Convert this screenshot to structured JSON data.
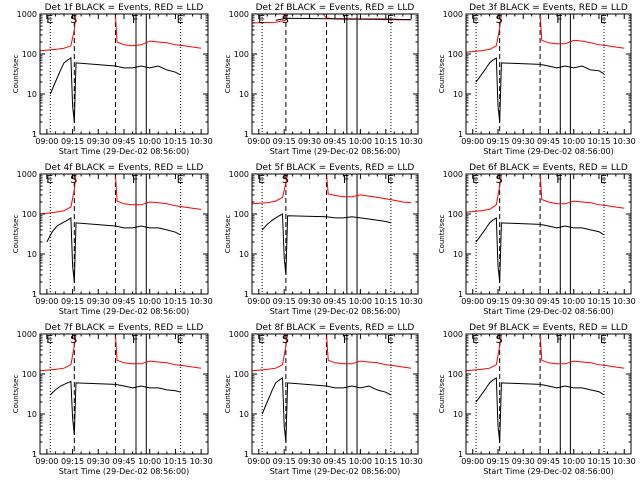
{
  "figure": {
    "x_axis_title": "Start Time (29-Dec-02 08:56:00)",
    "y_axis_title": "Counts/sec"
  },
  "chart_data": {
    "type": "line",
    "layout": "3x3 grid",
    "x_tick_labels": [
      "09:00",
      "09:15",
      "09:30",
      "09:45",
      "10:00",
      "10:15",
      "10:30"
    ],
    "x_tick_minutes_after_0900": [
      0,
      15,
      30,
      45,
      60,
      75,
      90
    ],
    "xlim_minutes_after_0900": [
      -4,
      94
    ],
    "yscale": "log",
    "ylim": [
      1,
      1000
    ],
    "y_tick_labels": [
      "1",
      "10",
      "100",
      "1000"
    ],
    "y_tick_values": [
      1,
      10,
      100,
      1000
    ],
    "series_styles": {
      "events": "#000000",
      "lld": "#ff0000"
    },
    "vertical_markers": [
      {
        "label": "E",
        "minute": 2,
        "style": "dotted"
      },
      {
        "label": "S",
        "minute": 16,
        "style": "dashed"
      },
      {
        "label": "",
        "minute": 40,
        "style": "dashed"
      },
      {
        "label": "F",
        "minute": 52,
        "style": "solid"
      },
      {
        "label": "",
        "minute": 58,
        "style": "solid"
      },
      {
        "label": "E",
        "minute": 78,
        "style": "dotted"
      }
    ],
    "panels": [
      {
        "title": "Det 1f BLACK = Events, RED = LLD",
        "lld": {
          "x": [
            -4,
            5,
            10,
            14,
            16,
            17,
            18,
            40,
            41,
            45,
            50,
            55,
            60,
            65,
            70,
            75,
            80,
            85,
            90
          ],
          "y": [
            120,
            130,
            140,
            160,
            400,
            1000,
            1000,
            1000,
            200,
            170,
            160,
            170,
            210,
            200,
            190,
            170,
            160,
            150,
            140
          ]
        },
        "events": {
          "x": [
            2,
            5,
            8,
            10,
            12,
            14,
            15,
            16,
            17,
            40,
            45,
            50,
            55,
            60,
            65,
            70,
            75,
            78
          ],
          "y": [
            10,
            20,
            40,
            60,
            70,
            80,
            5,
            2,
            60,
            50,
            45,
            45,
            50,
            45,
            50,
            40,
            35,
            30
          ]
        }
      },
      {
        "title": "Det 2f BLACK = Events, RED = LLD",
        "lld": {
          "x": [
            -4,
            10,
            16,
            17,
            18,
            38,
            40,
            45,
            50,
            60,
            70,
            80,
            90
          ],
          "y": [
            600,
            620,
            700,
            1000,
            1000,
            1000,
            800,
            750,
            740,
            740,
            730,
            720,
            720
          ]
        },
        "events": {
          "x": [
            10,
            14,
            16,
            40,
            50,
            60,
            70,
            80,
            90
          ],
          "y": [
            700,
            750,
            780,
            760,
            760,
            750,
            750,
            740,
            720
          ]
        }
      },
      {
        "title": "Det 3f BLACK = Events, RED = LLD",
        "lld": {
          "x": [
            -4,
            5,
            10,
            14,
            16,
            17,
            18,
            40,
            41,
            45,
            50,
            55,
            60,
            65,
            70,
            75,
            80,
            85,
            90
          ],
          "y": [
            110,
            120,
            130,
            160,
            450,
            1000,
            1000,
            1000,
            220,
            190,
            180,
            180,
            220,
            210,
            190,
            170,
            160,
            150,
            140
          ]
        },
        "events": {
          "x": [
            2,
            5,
            8,
            10,
            12,
            14,
            15,
            16,
            17,
            40,
            45,
            50,
            55,
            60,
            65,
            70,
            75,
            78
          ],
          "y": [
            20,
            30,
            45,
            60,
            70,
            80,
            5,
            2,
            60,
            55,
            50,
            45,
            50,
            45,
            50,
            40,
            38,
            32
          ]
        }
      },
      {
        "title": "Det 4f BLACK = Events, RED = LLD",
        "lld": {
          "x": [
            -4,
            5,
            10,
            14,
            16,
            17,
            18,
            40,
            41,
            45,
            50,
            55,
            60,
            65,
            70,
            75,
            80,
            85,
            90
          ],
          "y": [
            100,
            110,
            120,
            150,
            400,
            1000,
            1000,
            1000,
            210,
            180,
            170,
            170,
            200,
            190,
            180,
            160,
            150,
            140,
            130
          ]
        },
        "events": {
          "x": [
            0,
            3,
            6,
            9,
            12,
            14,
            15,
            16,
            17,
            40,
            45,
            50,
            55,
            60,
            65,
            70,
            75,
            78
          ],
          "y": [
            20,
            35,
            50,
            60,
            70,
            80,
            5,
            2,
            60,
            50,
            45,
            45,
            50,
            45,
            45,
            40,
            35,
            30
          ]
        }
      },
      {
        "title": "Det 5f BLACK = Events, RED = LLD",
        "lld": {
          "x": [
            -4,
            5,
            10,
            14,
            16,
            17,
            18,
            40,
            41,
            45,
            50,
            55,
            60,
            65,
            70,
            75,
            80,
            85,
            90
          ],
          "y": [
            180,
            190,
            210,
            260,
            600,
            1000,
            1000,
            1000,
            320,
            290,
            270,
            270,
            300,
            280,
            260,
            240,
            220,
            200,
            190
          ]
        },
        "events": {
          "x": [
            2,
            5,
            8,
            10,
            12,
            14,
            15,
            16,
            17,
            40,
            45,
            50,
            55,
            60,
            65,
            70,
            75,
            78
          ],
          "y": [
            40,
            55,
            70,
            80,
            90,
            100,
            8,
            3,
            90,
            85,
            80,
            80,
            85,
            80,
            75,
            70,
            65,
            60
          ]
        }
      },
      {
        "title": "Det 6f BLACK = Events, RED = LLD",
        "lld": {
          "x": [
            -4,
            5,
            10,
            14,
            16,
            17,
            18,
            40,
            41,
            45,
            50,
            55,
            60,
            65,
            70,
            75,
            80,
            85,
            90
          ],
          "y": [
            110,
            120,
            130,
            170,
            500,
            1000,
            1000,
            1000,
            230,
            200,
            180,
            180,
            210,
            200,
            190,
            170,
            160,
            150,
            140
          ]
        },
        "events": {
          "x": [
            2,
            5,
            8,
            10,
            12,
            14,
            15,
            16,
            17,
            40,
            45,
            50,
            55,
            60,
            65,
            70,
            75,
            78
          ],
          "y": [
            20,
            30,
            45,
            60,
            70,
            80,
            5,
            2,
            60,
            55,
            50,
            45,
            50,
            45,
            45,
            40,
            36,
            30
          ]
        }
      },
      {
        "title": "Det 7f BLACK = Events, RED = LLD",
        "lld": {
          "x": [
            -4,
            5,
            10,
            14,
            16,
            17,
            18,
            40,
            41,
            45,
            50,
            55,
            60,
            65,
            70,
            75,
            80,
            85,
            90
          ],
          "y": [
            120,
            130,
            140,
            170,
            500,
            1000,
            1000,
            1000,
            220,
            190,
            180,
            180,
            210,
            200,
            190,
            170,
            160,
            150,
            140
          ]
        },
        "events": {
          "x": [
            2,
            5,
            8,
            10,
            12,
            14,
            15,
            16,
            17,
            40,
            45,
            50,
            55,
            60,
            65,
            70,
            75,
            78
          ],
          "y": [
            30,
            40,
            50,
            55,
            60,
            65,
            8,
            3,
            60,
            55,
            50,
            45,
            50,
            45,
            45,
            40,
            38,
            35
          ]
        }
      },
      {
        "title": "Det 8f BLACK = Events, RED = LLD",
        "lld": {
          "x": [
            -4,
            5,
            10,
            14,
            16,
            17,
            18,
            40,
            41,
            45,
            50,
            55,
            60,
            65,
            70,
            75,
            80,
            85,
            90
          ],
          "y": [
            120,
            130,
            140,
            170,
            500,
            1000,
            1000,
            1000,
            220,
            190,
            180,
            180,
            210,
            200,
            190,
            170,
            160,
            150,
            140
          ]
        },
        "events": {
          "x": [
            2,
            5,
            8,
            10,
            12,
            14,
            15,
            16,
            17,
            40,
            45,
            50,
            55,
            60,
            65,
            70,
            75,
            78
          ],
          "y": [
            10,
            20,
            40,
            60,
            70,
            80,
            5,
            2,
            60,
            50,
            45,
            45,
            50,
            45,
            50,
            40,
            35,
            30
          ]
        }
      },
      {
        "title": "Det 9f BLACK = Events, RED = LLD",
        "lld": {
          "x": [
            -4,
            5,
            10,
            14,
            16,
            17,
            18,
            40,
            41,
            45,
            50,
            55,
            60,
            65,
            70,
            75,
            80,
            85,
            90
          ],
          "y": [
            120,
            130,
            140,
            170,
            500,
            1000,
            1000,
            1000,
            220,
            190,
            180,
            180,
            210,
            200,
            190,
            170,
            160,
            150,
            140
          ]
        },
        "events": {
          "x": [
            2,
            5,
            8,
            10,
            12,
            14,
            15,
            16,
            17,
            40,
            45,
            50,
            55,
            60,
            65,
            70,
            75,
            78
          ],
          "y": [
            20,
            30,
            45,
            60,
            70,
            80,
            5,
            2,
            60,
            55,
            50,
            45,
            50,
            45,
            45,
            40,
            36,
            30
          ]
        }
      }
    ]
  }
}
